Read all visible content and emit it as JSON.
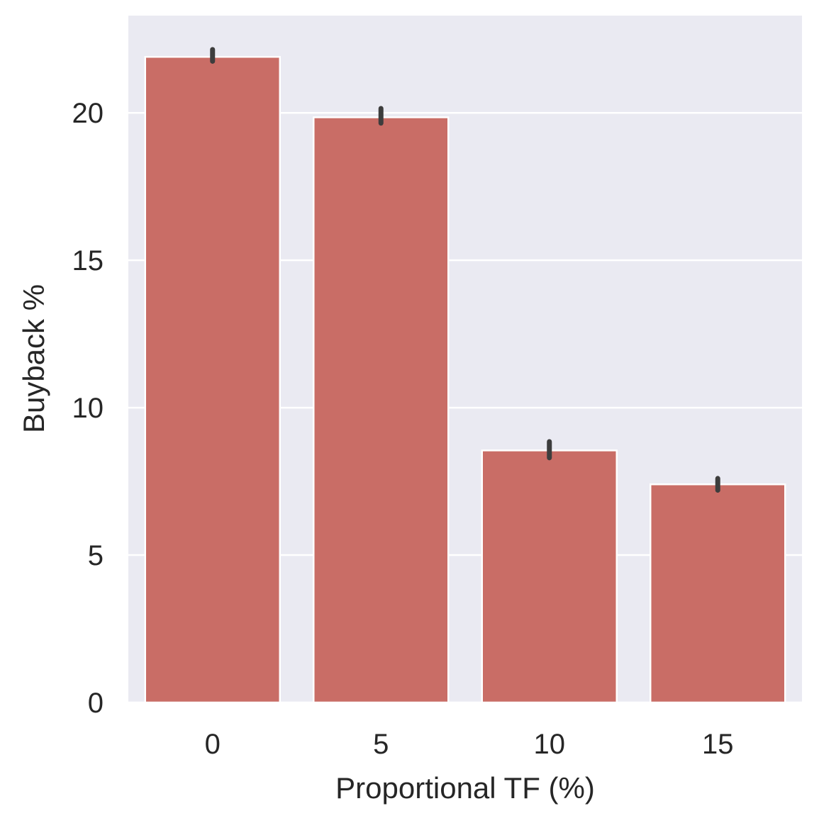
{
  "chart_data": {
    "type": "bar",
    "title": "",
    "xlabel": "Proportional TF (%)",
    "ylabel": "Buyback %",
    "categories": [
      "0",
      "5",
      "10",
      "15"
    ],
    "values": [
      21.9,
      19.85,
      8.55,
      7.4
    ],
    "error_bars": [
      [
        21.75,
        22.15
      ],
      [
        19.65,
        20.15
      ],
      [
        8.3,
        8.85
      ],
      [
        7.2,
        7.6
      ]
    ],
    "ylim": [
      0,
      23.3
    ],
    "yticks": [
      0,
      5,
      10,
      15,
      20
    ],
    "ytick_labels": [
      "0",
      "5",
      "10",
      "15",
      "20"
    ],
    "grid": true,
    "colors": {
      "bar": "#c96d66",
      "bar_edge": "#ffffff",
      "plot_background": "#eaeaf2",
      "grid": "#ffffff",
      "error_bar": "#3d3d3d",
      "text": "#262626"
    }
  }
}
